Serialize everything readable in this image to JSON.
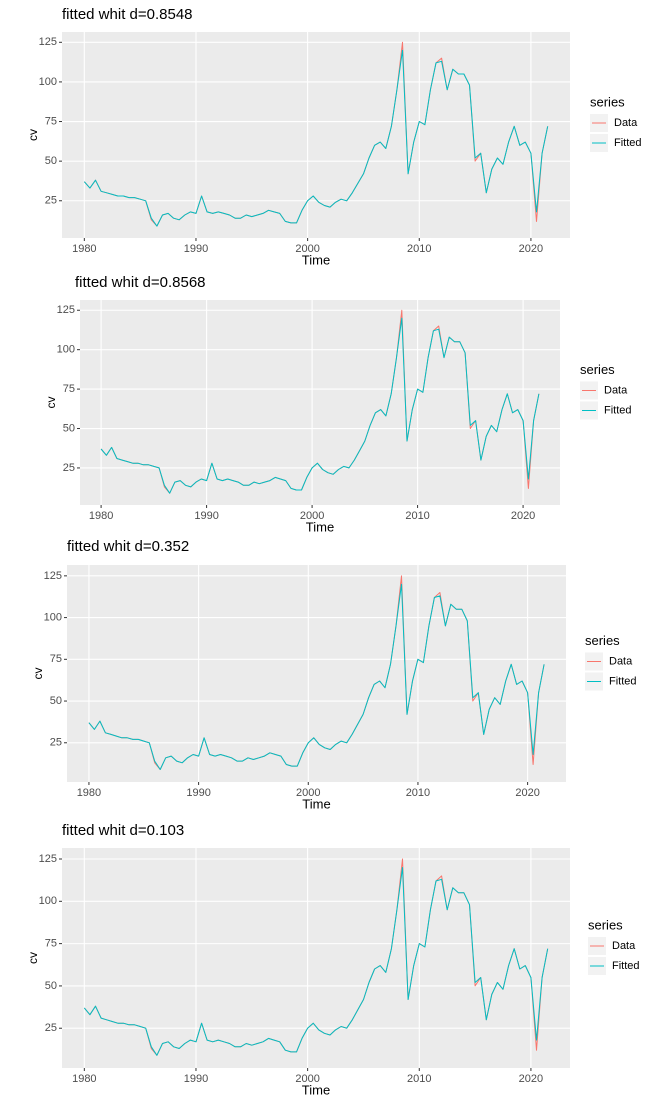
{
  "chart_data": [
    {
      "type": "line",
      "title": "fitted whit d=0.8548",
      "x_label": "Time",
      "y_label": "cv",
      "legend_title": "series",
      "legend": "right",
      "grid": true,
      "xlim": [
        1978,
        2023.5
      ],
      "ylim": [
        1.5,
        131.5
      ],
      "xticks": [
        1980,
        1990,
        2000,
        2010,
        2020
      ],
      "yticks": [
        25,
        50,
        75,
        100,
        125
      ],
      "x": [
        1980,
        1980.5,
        1981,
        1981.5,
        1982,
        1982.5,
        1983,
        1983.5,
        1984,
        1984.5,
        1985,
        1985.5,
        1986,
        1986.5,
        1987,
        1987.5,
        1988,
        1988.5,
        1989,
        1989.5,
        1990,
        1990.5,
        1991,
        1991.5,
        1992,
        1992.5,
        1993,
        1993.5,
        1994,
        1994.5,
        1995,
        1995.5,
        1996,
        1996.5,
        1997,
        1997.5,
        1998,
        1998.5,
        1999,
        1999.5,
        2000,
        2000.5,
        2001,
        2001.5,
        2002,
        2002.5,
        2003,
        2003.5,
        2004,
        2004.5,
        2005,
        2005.5,
        2006,
        2006.5,
        2007,
        2007.5,
        2008,
        2008.5,
        2009,
        2009.5,
        2010,
        2010.5,
        2011,
        2011.5,
        2012,
        2012.5,
        2013,
        2013.5,
        2014,
        2014.5,
        2015,
        2015.5,
        2016,
        2016.5,
        2017,
        2017.5,
        2018,
        2018.5,
        2019,
        2019.5,
        2020,
        2020.5,
        2021,
        2021.5
      ],
      "series": [
        {
          "name": "Data",
          "color": "#F8766D",
          "values": [
            37,
            33,
            38,
            31,
            30,
            29,
            28,
            28,
            27,
            27,
            26,
            25,
            13,
            9,
            16,
            17,
            14,
            13,
            16,
            18,
            17,
            28,
            18,
            17,
            18,
            17,
            16,
            14,
            14,
            16,
            15,
            16,
            17,
            19,
            18,
            17,
            12,
            11,
            11,
            19,
            25,
            28,
            24,
            22,
            21,
            24,
            26,
            25,
            30,
            36,
            42,
            52,
            60,
            62,
            58,
            72,
            95,
            125,
            42,
            62,
            75,
            73,
            95,
            112,
            115,
            95,
            108,
            105,
            105,
            98,
            50,
            55,
            30,
            45,
            52,
            48,
            62,
            72,
            60,
            62,
            55,
            12,
            55,
            72
          ]
        },
        {
          "name": "Fitted",
          "color": "#00BFC4",
          "values": [
            37,
            33,
            38,
            31,
            30,
            29,
            28,
            28,
            27,
            27,
            26,
            25,
            14,
            9,
            16,
            17,
            14,
            13,
            16,
            18,
            17,
            28,
            18,
            17,
            18,
            17,
            16,
            14,
            14,
            16,
            15,
            16,
            17,
            19,
            18,
            17,
            12,
            11,
            11,
            19,
            25,
            28,
            24,
            22,
            21,
            24,
            26,
            25,
            30,
            36,
            42,
            52,
            60,
            62,
            58,
            72,
            95,
            120,
            42,
            62,
            75,
            73,
            95,
            112,
            113,
            95,
            108,
            105,
            105,
            98,
            52,
            55,
            30,
            45,
            52,
            48,
            62,
            72,
            60,
            62,
            55,
            18,
            55,
            72
          ]
        }
      ]
    },
    {
      "type": "line",
      "title": "fitted whit d=0.8568",
      "x_label": "Time",
      "y_label": "cv",
      "legend_title": "series",
      "legend": "right",
      "grid": true,
      "xlim": [
        1978,
        2023.5
      ],
      "ylim": [
        1.5,
        131.5
      ],
      "xticks": [
        1980,
        1990,
        2000,
        2010,
        2020
      ],
      "yticks": [
        25,
        50,
        75,
        100,
        125
      ],
      "x": [
        1980,
        1980.5,
        1981,
        1981.5,
        1982,
        1982.5,
        1983,
        1983.5,
        1984,
        1984.5,
        1985,
        1985.5,
        1986,
        1986.5,
        1987,
        1987.5,
        1988,
        1988.5,
        1989,
        1989.5,
        1990,
        1990.5,
        1991,
        1991.5,
        1992,
        1992.5,
        1993,
        1993.5,
        1994,
        1994.5,
        1995,
        1995.5,
        1996,
        1996.5,
        1997,
        1997.5,
        1998,
        1998.5,
        1999,
        1999.5,
        2000,
        2000.5,
        2001,
        2001.5,
        2002,
        2002.5,
        2003,
        2003.5,
        2004,
        2004.5,
        2005,
        2005.5,
        2006,
        2006.5,
        2007,
        2007.5,
        2008,
        2008.5,
        2009,
        2009.5,
        2010,
        2010.5,
        2011,
        2011.5,
        2012,
        2012.5,
        2013,
        2013.5,
        2014,
        2014.5,
        2015,
        2015.5,
        2016,
        2016.5,
        2017,
        2017.5,
        2018,
        2018.5,
        2019,
        2019.5,
        2020,
        2020.5,
        2021,
        2021.5
      ],
      "series": [
        {
          "name": "Data",
          "color": "#F8766D",
          "values": [
            37,
            33,
            38,
            31,
            30,
            29,
            28,
            28,
            27,
            27,
            26,
            25,
            13,
            9,
            16,
            17,
            14,
            13,
            16,
            18,
            17,
            28,
            18,
            17,
            18,
            17,
            16,
            14,
            14,
            16,
            15,
            16,
            17,
            19,
            18,
            17,
            12,
            11,
            11,
            19,
            25,
            28,
            24,
            22,
            21,
            24,
            26,
            25,
            30,
            36,
            42,
            52,
            60,
            62,
            58,
            72,
            95,
            125,
            42,
            62,
            75,
            73,
            95,
            112,
            115,
            95,
            108,
            105,
            105,
            98,
            50,
            55,
            30,
            45,
            52,
            48,
            62,
            72,
            60,
            62,
            55,
            12,
            55,
            72
          ]
        },
        {
          "name": "Fitted",
          "color": "#00BFC4",
          "values": [
            37,
            33,
            38,
            31,
            30,
            29,
            28,
            28,
            27,
            27,
            26,
            25,
            14,
            9,
            16,
            17,
            14,
            13,
            16,
            18,
            17,
            28,
            18,
            17,
            18,
            17,
            16,
            14,
            14,
            16,
            15,
            16,
            17,
            19,
            18,
            17,
            12,
            11,
            11,
            19,
            25,
            28,
            24,
            22,
            21,
            24,
            26,
            25,
            30,
            36,
            42,
            52,
            60,
            62,
            58,
            72,
            95,
            120,
            42,
            62,
            75,
            73,
            95,
            112,
            113,
            95,
            108,
            105,
            105,
            98,
            52,
            55,
            30,
            45,
            52,
            48,
            62,
            72,
            60,
            62,
            55,
            18,
            55,
            72
          ]
        }
      ]
    },
    {
      "type": "line",
      "title": "fitted whit d=0.352",
      "x_label": "Time",
      "y_label": "cv",
      "legend_title": "series",
      "legend": "right",
      "grid": true,
      "xlim": [
        1978,
        2023.5
      ],
      "ylim": [
        1.5,
        131.5
      ],
      "xticks": [
        1980,
        1990,
        2000,
        2010,
        2020
      ],
      "yticks": [
        25,
        50,
        75,
        100,
        125
      ],
      "x": [
        1980,
        1980.5,
        1981,
        1981.5,
        1982,
        1982.5,
        1983,
        1983.5,
        1984,
        1984.5,
        1985,
        1985.5,
        1986,
        1986.5,
        1987,
        1987.5,
        1988,
        1988.5,
        1989,
        1989.5,
        1990,
        1990.5,
        1991,
        1991.5,
        1992,
        1992.5,
        1993,
        1993.5,
        1994,
        1994.5,
        1995,
        1995.5,
        1996,
        1996.5,
        1997,
        1997.5,
        1998,
        1998.5,
        1999,
        1999.5,
        2000,
        2000.5,
        2001,
        2001.5,
        2002,
        2002.5,
        2003,
        2003.5,
        2004,
        2004.5,
        2005,
        2005.5,
        2006,
        2006.5,
        2007,
        2007.5,
        2008,
        2008.5,
        2009,
        2009.5,
        2010,
        2010.5,
        2011,
        2011.5,
        2012,
        2012.5,
        2013,
        2013.5,
        2014,
        2014.5,
        2015,
        2015.5,
        2016,
        2016.5,
        2017,
        2017.5,
        2018,
        2018.5,
        2019,
        2019.5,
        2020,
        2020.5,
        2021,
        2021.5
      ],
      "series": [
        {
          "name": "Data",
          "color": "#F8766D",
          "values": [
            37,
            33,
            38,
            31,
            30,
            29,
            28,
            28,
            27,
            27,
            26,
            25,
            13,
            9,
            16,
            17,
            14,
            13,
            16,
            18,
            17,
            28,
            18,
            17,
            18,
            17,
            16,
            14,
            14,
            16,
            15,
            16,
            17,
            19,
            18,
            17,
            12,
            11,
            11,
            19,
            25,
            28,
            24,
            22,
            21,
            24,
            26,
            25,
            30,
            36,
            42,
            52,
            60,
            62,
            58,
            72,
            95,
            125,
            42,
            62,
            75,
            73,
            95,
            112,
            115,
            95,
            108,
            105,
            105,
            98,
            50,
            55,
            30,
            45,
            52,
            48,
            62,
            72,
            60,
            62,
            55,
            12,
            55,
            72
          ]
        },
        {
          "name": "Fitted",
          "color": "#00BFC4",
          "values": [
            37,
            33,
            38,
            31,
            30,
            29,
            28,
            28,
            27,
            27,
            26,
            25,
            14,
            9,
            16,
            17,
            14,
            13,
            16,
            18,
            17,
            28,
            18,
            17,
            18,
            17,
            16,
            14,
            14,
            16,
            15,
            16,
            17,
            19,
            18,
            17,
            12,
            11,
            11,
            19,
            25,
            28,
            24,
            22,
            21,
            24,
            26,
            25,
            30,
            36,
            42,
            52,
            60,
            62,
            58,
            72,
            95,
            120,
            42,
            62,
            75,
            73,
            95,
            112,
            113,
            95,
            108,
            105,
            105,
            98,
            52,
            55,
            30,
            45,
            52,
            48,
            62,
            72,
            60,
            62,
            55,
            18,
            55,
            72
          ]
        }
      ]
    },
    {
      "type": "line",
      "title": "fitted whit d=0.103",
      "x_label": "Time",
      "y_label": "cv",
      "legend_title": "series",
      "legend": "right",
      "grid": true,
      "xlim": [
        1978,
        2023.5
      ],
      "ylim": [
        1.5,
        131.5
      ],
      "xticks": [
        1980,
        1990,
        2000,
        2010,
        2020
      ],
      "yticks": [
        25,
        50,
        75,
        100,
        125
      ],
      "x": [
        1980,
        1980.5,
        1981,
        1981.5,
        1982,
        1982.5,
        1983,
        1983.5,
        1984,
        1984.5,
        1985,
        1985.5,
        1986,
        1986.5,
        1987,
        1987.5,
        1988,
        1988.5,
        1989,
        1989.5,
        1990,
        1990.5,
        1991,
        1991.5,
        1992,
        1992.5,
        1993,
        1993.5,
        1994,
        1994.5,
        1995,
        1995.5,
        1996,
        1996.5,
        1997,
        1997.5,
        1998,
        1998.5,
        1999,
        1999.5,
        2000,
        2000.5,
        2001,
        2001.5,
        2002,
        2002.5,
        2003,
        2003.5,
        2004,
        2004.5,
        2005,
        2005.5,
        2006,
        2006.5,
        2007,
        2007.5,
        2008,
        2008.5,
        2009,
        2009.5,
        2010,
        2010.5,
        2011,
        2011.5,
        2012,
        2012.5,
        2013,
        2013.5,
        2014,
        2014.5,
        2015,
        2015.5,
        2016,
        2016.5,
        2017,
        2017.5,
        2018,
        2018.5,
        2019,
        2019.5,
        2020,
        2020.5,
        2021,
        2021.5
      ],
      "series": [
        {
          "name": "Data",
          "color": "#F8766D",
          "values": [
            37,
            33,
            38,
            31,
            30,
            29,
            28,
            28,
            27,
            27,
            26,
            25,
            13,
            9,
            16,
            17,
            14,
            13,
            16,
            18,
            17,
            28,
            18,
            17,
            18,
            17,
            16,
            14,
            14,
            16,
            15,
            16,
            17,
            19,
            18,
            17,
            12,
            11,
            11,
            19,
            25,
            28,
            24,
            22,
            21,
            24,
            26,
            25,
            30,
            36,
            42,
            52,
            60,
            62,
            58,
            72,
            95,
            125,
            42,
            62,
            75,
            73,
            95,
            112,
            115,
            95,
            108,
            105,
            105,
            98,
            50,
            55,
            30,
            45,
            52,
            48,
            62,
            72,
            60,
            62,
            55,
            12,
            55,
            72
          ]
        },
        {
          "name": "Fitted",
          "color": "#00BFC4",
          "values": [
            37,
            33,
            38,
            31,
            30,
            29,
            28,
            28,
            27,
            27,
            26,
            25,
            14,
            9,
            16,
            17,
            14,
            13,
            16,
            18,
            17,
            28,
            18,
            17,
            18,
            17,
            16,
            14,
            14,
            16,
            15,
            16,
            17,
            19,
            18,
            17,
            12,
            11,
            11,
            19,
            25,
            28,
            24,
            22,
            21,
            24,
            26,
            25,
            30,
            36,
            42,
            52,
            60,
            62,
            58,
            72,
            95,
            120,
            42,
            62,
            75,
            73,
            95,
            112,
            113,
            95,
            108,
            105,
            105,
            98,
            52,
            55,
            30,
            45,
            52,
            48,
            62,
            72,
            60,
            62,
            55,
            18,
            55,
            72
          ]
        }
      ]
    }
  ]
}
